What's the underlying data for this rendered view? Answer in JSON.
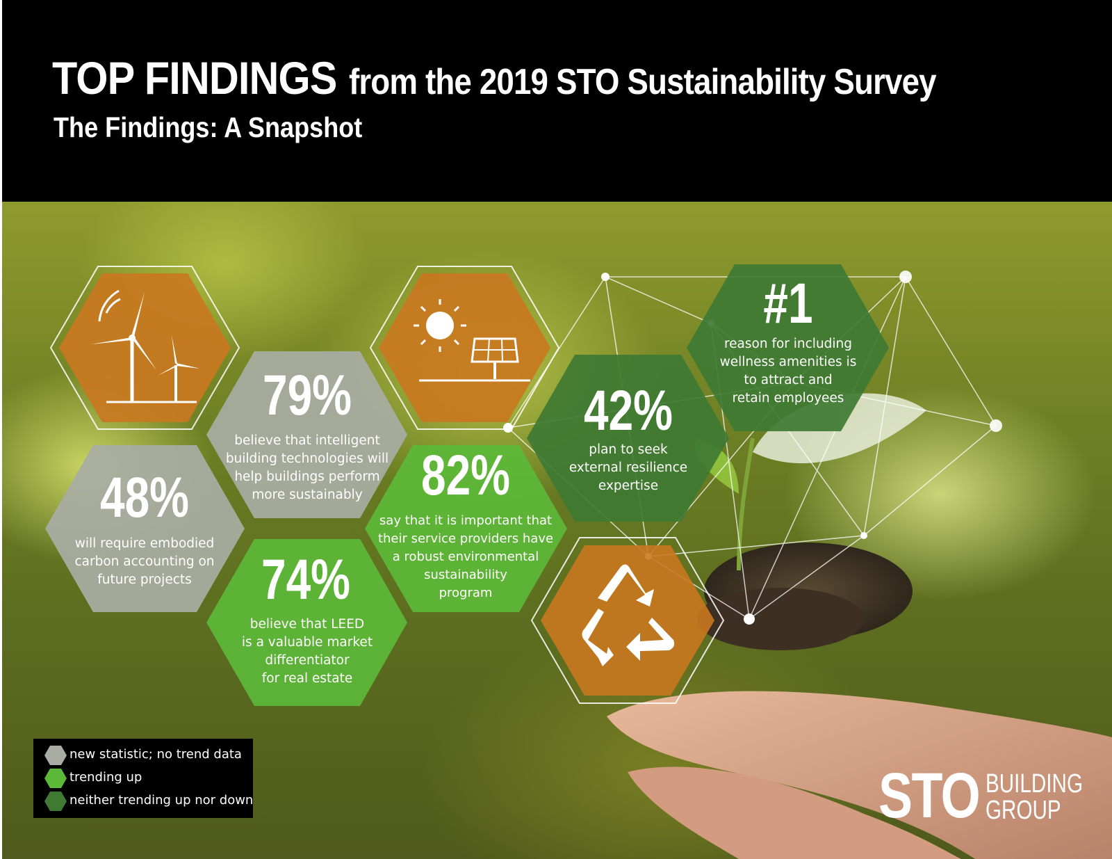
{
  "header": {
    "title_main": "TOP FINDINGS",
    "title_rest": "from the 2019 STO Sustainability Survey",
    "subtitle": "The Findings: A Snapshot"
  },
  "findings": [
    {
      "id": "79",
      "stat": "79%",
      "lines": [
        "believe that intelligent",
        "building technologies will",
        "help buildings perform",
        "more sustainably"
      ],
      "trend": "new statistic; no trend data"
    },
    {
      "id": "48",
      "stat": "48%",
      "lines": [
        "will require embodied",
        "carbon accounting on",
        "future projects"
      ],
      "trend": "new statistic; no trend data"
    },
    {
      "id": "74",
      "stat": "74%",
      "lines": [
        "believe that LEED",
        "is a valuable market",
        "differentiator",
        "for real estate"
      ],
      "trend": "trending up"
    },
    {
      "id": "82",
      "stat": "82%",
      "lines": [
        "say that it is important that",
        "their service providers have",
        "a robust environmental",
        "sustainability",
        "program"
      ],
      "trend": "trending up"
    },
    {
      "id": "42",
      "stat": "42%",
      "lines": [
        "plan to seek",
        "external resilience",
        "expertise"
      ],
      "trend": "neither trending up nor down"
    },
    {
      "id": "1",
      "stat": "#1",
      "lines": [
        "reason for including",
        "wellness amenities is",
        "to attract and",
        "retain employees"
      ],
      "trend": "neither trending up nor down"
    }
  ],
  "icons": {
    "wind": "wind-turbine-icon",
    "solar": "sun-solar-panel-icon",
    "recycle": "recycle-icon"
  },
  "legend": [
    {
      "label": "new statistic; no trend data",
      "color": "#a9aca3"
    },
    {
      "label": "trending up",
      "color": "#5cb838"
    },
    {
      "label": "neither trending up nor down",
      "color": "#3f7a33"
    }
  ],
  "logo": {
    "mark": "STO",
    "line1": "BUILDING",
    "line2": "GROUP"
  },
  "colors": {
    "orange": "#c9781f",
    "gray": "#a9aca3",
    "bright_green": "#5cb838",
    "dark_green": "#3f7a33"
  }
}
